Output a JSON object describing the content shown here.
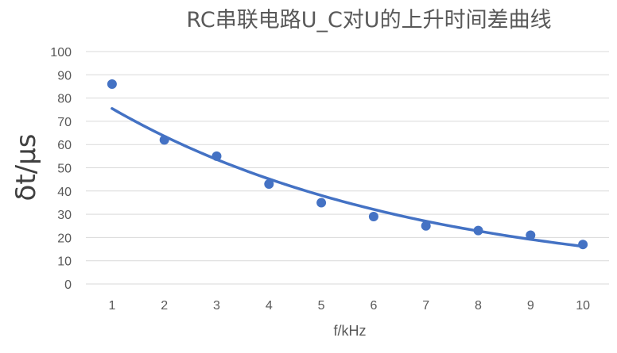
{
  "chart_data": {
    "type": "scatter",
    "title": "RC串联电路U_C对U的上升时间差曲线",
    "xlabel": "f/kHz",
    "ylabel": "δt/μs",
    "x": [
      1,
      2,
      3,
      4,
      5,
      6,
      7,
      8,
      9,
      10
    ],
    "y": [
      86,
      62,
      55,
      43,
      35,
      29,
      25,
      23,
      21,
      17
    ],
    "xlim": [
      0.5,
      10.5
    ],
    "ylim": [
      0,
      100
    ],
    "x_ticks": [
      "1",
      "2",
      "3",
      "4",
      "5",
      "6",
      "7",
      "8",
      "9",
      "10"
    ],
    "y_ticks": [
      "0",
      "10",
      "20",
      "30",
      "40",
      "50",
      "60",
      "70",
      "80",
      "90",
      "100"
    ],
    "trendline": {
      "type": "exponential",
      "x": [
        1,
        2,
        3,
        4,
        5,
        6,
        7,
        8,
        9,
        10
      ],
      "y": [
        75.5,
        63.6,
        53.6,
        45.2,
        38.1,
        32.1,
        27.0,
        22.8,
        19.2,
        16.2
      ]
    },
    "grid": true,
    "legend": "none",
    "colors": {
      "series": "#4472c4",
      "grid": "#d9d9d9",
      "text": "#595959"
    }
  }
}
